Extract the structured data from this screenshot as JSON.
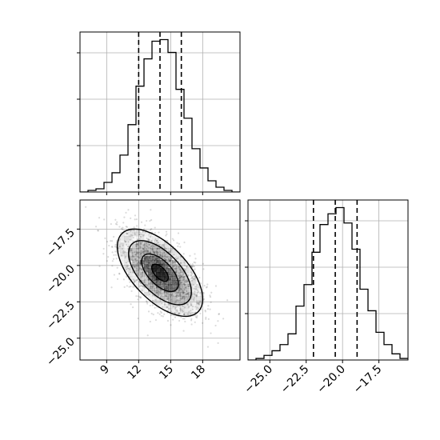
{
  "chart_data": [
    {
      "type": "histogram",
      "panel": "marginal-x",
      "variable": "x",
      "xlim": [
        6.5,
        21.5
      ],
      "grid": true,
      "bin_edges": [
        6.5,
        7.25,
        8.0,
        8.75,
        9.5,
        10.25,
        11.0,
        11.75,
        12.5,
        13.25,
        14.0,
        14.75,
        15.5,
        16.25,
        17.0,
        17.75,
        18.5,
        19.25,
        20.0,
        20.75,
        21.5
      ],
      "counts": [
        0.0,
        0.01,
        0.02,
        0.06,
        0.12,
        0.23,
        0.42,
        0.66,
        0.83,
        0.94,
        0.95,
        0.87,
        0.64,
        0.46,
        0.27,
        0.15,
        0.07,
        0.03,
        0.01,
        0.0
      ],
      "quantile_lines": [
        12.0,
        14.0,
        16.0
      ],
      "ytick_count": 3
    },
    {
      "type": "scatter",
      "panel": "joint-density",
      "xlim": [
        6.5,
        21.5
      ],
      "ylim": [
        -26.5,
        -15.5
      ],
      "grid": true,
      "xticks": [
        "9",
        "12",
        "15",
        "18"
      ],
      "xtick_values": [
        9,
        12,
        15,
        18
      ],
      "yticks": [
        "−17.5",
        "−20.0",
        "−22.5",
        "−25.0"
      ],
      "ytick_values": [
        -17.5,
        -20.0,
        -22.5,
        -25.0
      ],
      "mean": [
        14.0,
        -20.5
      ],
      "std": [
        2.0,
        1.5
      ],
      "correlation": -0.6,
      "density_levels": [
        0.39,
        0.86,
        1.47,
        2.0
      ]
    },
    {
      "type": "histogram",
      "panel": "marginal-y",
      "variable": "y",
      "xlim": [
        -26.5,
        -15.5
      ],
      "grid": true,
      "xticks": [
        "−25.0",
        "−22.5",
        "−20.0",
        "−17.5"
      ],
      "xtick_values": [
        -25.0,
        -22.5,
        -20.0,
        -17.5
      ],
      "bin_edges": [
        -26.5,
        -25.95,
        -25.4,
        -24.85,
        -24.3,
        -23.75,
        -23.2,
        -22.65,
        -22.1,
        -21.55,
        -21.0,
        -20.45,
        -19.9,
        -19.35,
        -18.8,
        -18.25,
        -17.7,
        -17.15,
        -16.6,
        -16.05,
        -15.5
      ],
      "counts": [
        0.0,
        0.01,
        0.03,
        0.06,
        0.1,
        0.17,
        0.35,
        0.49,
        0.7,
        0.88,
        0.95,
        0.99,
        0.89,
        0.72,
        0.46,
        0.32,
        0.18,
        0.1,
        0.04,
        0.01
      ],
      "quantile_lines": [
        -22.0,
        -20.5,
        -19.0
      ],
      "ytick_count": 3
    }
  ]
}
